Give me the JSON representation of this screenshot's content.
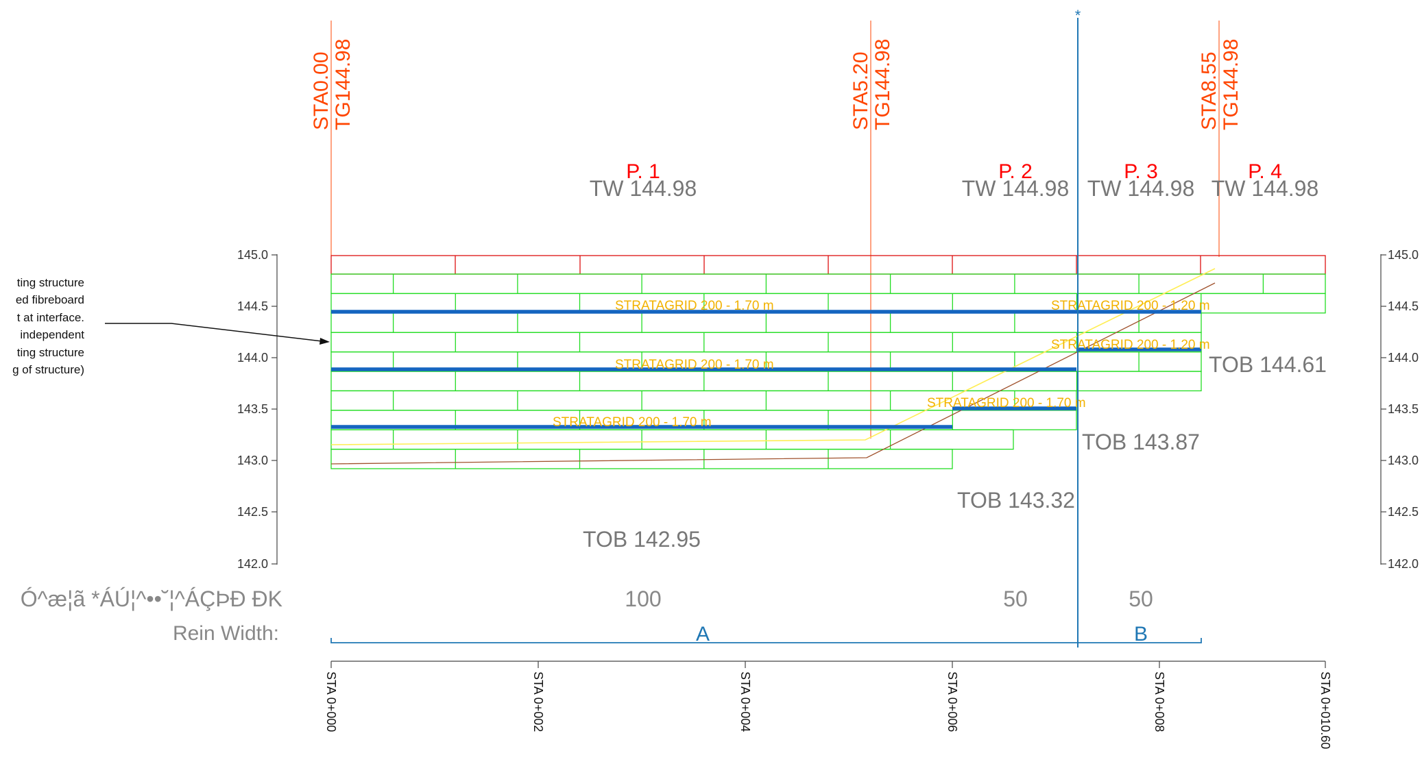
{
  "colors": {
    "block_green": "#22dd22",
    "cap_red": "#dd1111",
    "grid_blue": "#1565c0",
    "grid_label": "#f2b200",
    "station_orange": "#ff4500",
    "panel_red": "#ff0000",
    "gray_text": "#777777",
    "axis": "#444444",
    "ref_blue": "#1f77b4",
    "slope_brown": "#a0522d",
    "slope_yellow": "#ffee55"
  },
  "stations": [
    {
      "top": "STA0.00",
      "bottom": "TG144.98"
    },
    {
      "top": "STA5.20",
      "bottom": "TG144.98"
    },
    {
      "top": "STA8.55",
      "bottom": "TG144.98"
    }
  ],
  "panels": [
    {
      "label": "P. 1",
      "tw": "TW 144.98"
    },
    {
      "label": "P. 2",
      "tw": "TW 144.98"
    },
    {
      "label": "P. 3",
      "tw": "TW 144.98"
    },
    {
      "label": "P. 4",
      "tw": "TW 144.98"
    }
  ],
  "elevation_ticks_left": [
    "145.0",
    "144.5",
    "144.0",
    "143.5",
    "143.0",
    "142.5",
    "142.0"
  ],
  "elevation_ticks_right": [
    "145.0",
    "144.5",
    "144.0",
    "143.5",
    "143.0",
    "142.5",
    "142.0"
  ],
  "geogrids": [
    {
      "label": "STRATAGRID 200 - 1.70 m"
    },
    {
      "label": "STRATAGRID 200 - 1.20 m"
    },
    {
      "label": "STRATAGRID 200 - 1.70 m"
    },
    {
      "label": "STRATAGRID 200 - 1.20 m"
    },
    {
      "label": "STRATAGRID 200 - 1.70 m"
    },
    {
      "label": "STRATAGRID 200 - 1.70 m"
    }
  ],
  "tob": [
    "TOB 144.61",
    "TOB 143.87",
    "TOB 143.32",
    "TOB 142.95"
  ],
  "note_lines": [
    "ting structure",
    "ed fibreboard",
    "t at interface.",
    "independent",
    "ting structure",
    "g of structure)"
  ],
  "garbled_label": "Ó^æ¦ã *ÁÚ¦^••˘¦^ÁÇÞÐ ÐK",
  "pressures": [
    "100",
    "50",
    "50"
  ],
  "rein_width_label": "Rein Width:",
  "zones": [
    "A",
    "B"
  ],
  "ref_marker": "*",
  "chainage": [
    "STA 0+000",
    "STA 0+002",
    "STA 0+004",
    "STA 0+006",
    "STA 0+008",
    "STA 0+010.60"
  ]
}
